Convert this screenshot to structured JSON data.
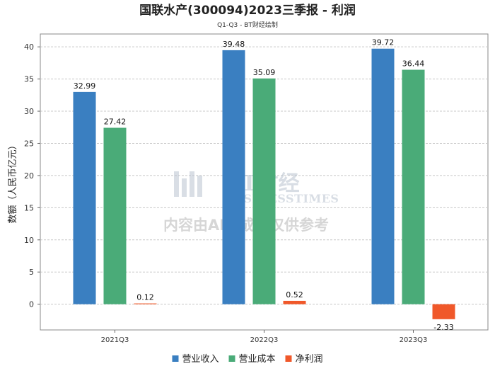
{
  "chart_data": {
    "type": "bar",
    "title": "国联水产(300094)2023三季报 - 利润",
    "subtitle": "Q1-Q3 - BT财经绘制",
    "xlabel": "",
    "ylabel": "数额（人民币亿元）",
    "categories": [
      "2021Q3",
      "2022Q3",
      "2023Q3"
    ],
    "series": [
      {
        "name": "营业收入",
        "color": "#3a7fc1",
        "values": [
          32.99,
          39.48,
          39.72
        ],
        "labels": [
          "32.99",
          "39.48",
          "39.72"
        ]
      },
      {
        "name": "营业成本",
        "color": "#4aab78",
        "values": [
          27.42,
          35.09,
          36.44
        ],
        "labels": [
          "27.42",
          "35.09",
          "36.44"
        ]
      },
      {
        "name": "净利润",
        "color": "#f0582a",
        "values": [
          0.12,
          0.52,
          -2.33
        ],
        "labels": [
          "0.12",
          "0.52",
          "-2.33"
        ]
      }
    ],
    "ylim": [
      -4,
      42
    ],
    "yticks": [
      0,
      5,
      10,
      15,
      20,
      25,
      30,
      35,
      40
    ],
    "grid": true,
    "legend_position": "bottom-center"
  },
  "watermark": {
    "logo_text": "BT财经",
    "logo_sub": "BUSINESSTIMES",
    "notice": "内容由AI生成，仅供参考"
  }
}
